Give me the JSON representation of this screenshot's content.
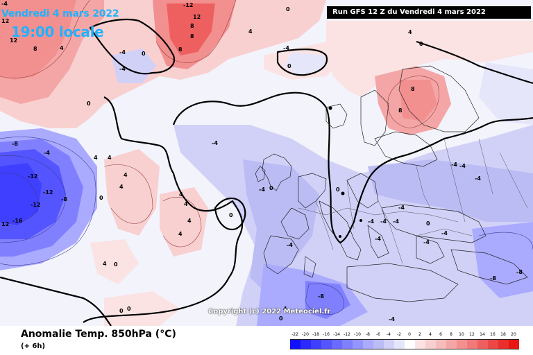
{
  "header": {
    "date": "Vendredi 4 mars 2022",
    "time": "19:00 locale",
    "run_info": "Run GFS 12 Z du Vendredi 4 mars 2022"
  },
  "copyright": "Copyright (c) 2022 Meteociel.fr",
  "legend": {
    "title": "Anomalie Temp. 850hPa (°C)",
    "subtitle": "(+ 6h)",
    "ticks": [
      "-22",
      "-20",
      "-18",
      "-16",
      "-14",
      "-12",
      "-10",
      "-8",
      "-6",
      "-4",
      "-2",
      "0",
      "2",
      "4",
      "6",
      "8",
      "10",
      "12",
      "14",
      "16",
      "18",
      "20"
    ],
    "colors": [
      "#1010ff",
      "#2a2aff",
      "#3f3fff",
      "#5555ff",
      "#6b6bff",
      "#8080ff",
      "#9595ff",
      "#aaaaff",
      "#bcbcf5",
      "#d1d1f8",
      "#e6e6fb",
      "#ffffff",
      "#fbe3e3",
      "#f8cfcf",
      "#f5bcbc",
      "#f4a6a6",
      "#f29090",
      "#f07a7a",
      "#ee6060",
      "#ec4747",
      "#ea2d2d",
      "#e81515"
    ]
  },
  "contour_labels": [
    {
      "text": "-4",
      "name": "label-top-left-1"
    },
    {
      "text": "12",
      "name": "label-greenland-1"
    },
    {
      "text": "12",
      "name": "label-greenland-2"
    },
    {
      "text": "8",
      "name": "label-greenland-3"
    },
    {
      "text": "4",
      "name": "label-greenland-4"
    },
    {
      "text": "0",
      "name": "label-greenland-5"
    },
    {
      "text": "-4",
      "name": "label-davis-1"
    },
    {
      "text": "0",
      "name": "label-davis-2"
    },
    {
      "text": "-4",
      "name": "label-davis-3"
    },
    {
      "text": "-12",
      "name": "label-arctic-1"
    },
    {
      "text": "8",
      "name": "label-arctic-2"
    },
    {
      "text": "12",
      "name": "label-arctic-3"
    },
    {
      "text": "8",
      "name": "label-arctic-4"
    },
    {
      "text": "8",
      "name": "label-arctic-5"
    },
    {
      "text": "4",
      "name": "label-arctic-6"
    },
    {
      "text": "0",
      "name": "label-arctic-7"
    },
    {
      "text": "-4",
      "name": "label-arctic-8"
    },
    {
      "text": "0",
      "name": "label-arctic-9"
    },
    {
      "text": "4",
      "name": "label-arctic-10"
    },
    {
      "text": "0",
      "name": "label-svalbard"
    },
    {
      "text": "8",
      "name": "label-scand-1"
    },
    {
      "text": "8",
      "name": "label-scand-2"
    },
    {
      "text": "-8",
      "name": "label-canada-1"
    },
    {
      "text": "-12",
      "name": "label-canada-2"
    },
    {
      "text": "-12",
      "name": "label-canada-3"
    },
    {
      "text": "-8",
      "name": "label-canada-4"
    },
    {
      "text": "-12",
      "name": "label-canada-5"
    },
    {
      "text": "-16",
      "name": "label-canada-6"
    },
    {
      "text": "12",
      "name": "label-canada-7"
    },
    {
      "text": "-4",
      "name": "label-canada-8"
    },
    {
      "text": "4",
      "name": "label-atl-1"
    },
    {
      "text": "4",
      "name": "label-atl-2"
    },
    {
      "text": "4",
      "name": "label-atl-3"
    },
    {
      "text": "4",
      "name": "label-atl-4"
    },
    {
      "text": "4",
      "name": "label-atl-5"
    },
    {
      "text": "0",
      "name": "label-atl-6"
    },
    {
      "text": "4",
      "name": "label-atl-7"
    },
    {
      "text": "4",
      "name": "label-atl-8"
    },
    {
      "text": "0",
      "name": "label-atl-9"
    },
    {
      "text": "0",
      "name": "label-atl-10"
    },
    {
      "text": "4",
      "name": "label-atl-11"
    },
    {
      "text": "4",
      "name": "label-atl-12"
    },
    {
      "text": "0",
      "name": "label-atl-13"
    },
    {
      "text": "-4",
      "name": "label-mid-1"
    },
    {
      "text": "-4",
      "name": "label-uk-1"
    },
    {
      "text": "0",
      "name": "label-uk-2"
    },
    {
      "text": "0",
      "name": "label-eu-1"
    },
    {
      "text": "-4",
      "name": "label-eu-2"
    },
    {
      "text": "-4",
      "name": "label-eu-3"
    },
    {
      "text": "-4",
      "name": "label-eu-4"
    },
    {
      "text": "-4",
      "name": "label-eu-5"
    },
    {
      "text": "-4",
      "name": "label-eu-6"
    },
    {
      "text": "-4",
      "name": "label-eu-7"
    },
    {
      "text": "-4",
      "name": "label-eu-8"
    },
    {
      "text": "0",
      "name": "label-eu-9"
    },
    {
      "text": "-4",
      "name": "label-east-1"
    },
    {
      "text": "-4",
      "name": "label-east-2"
    },
    {
      "text": "-4",
      "name": "label-east-3"
    },
    {
      "text": "-8",
      "name": "label-east-4"
    },
    {
      "text": "-8",
      "name": "label-east-5"
    },
    {
      "text": "-4",
      "name": "label-med-1"
    },
    {
      "text": "-8",
      "name": "label-med-2"
    },
    {
      "text": "-4",
      "name": "label-med-3"
    },
    {
      "text": "0",
      "name": "label-sw-1"
    },
    {
      "text": "4",
      "name": "label-sw-2"
    },
    {
      "text": "0",
      "name": "label-sw-3"
    }
  ]
}
